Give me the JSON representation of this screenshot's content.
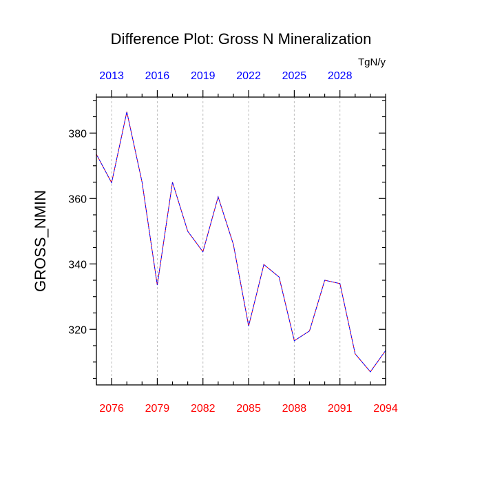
{
  "chart_data": {
    "type": "line",
    "title": "Difference Plot: Gross N Mineralization",
    "units": "TgN/y",
    "ylabel": "GROSS_NMIN",
    "xlabel": "",
    "xlim_bottom": [
      2075,
      2094
    ],
    "xlim_top": [
      2012,
      2031
    ],
    "ylim": [
      303,
      391
    ],
    "bottom_ticks": [
      2076,
      2079,
      2082,
      2085,
      2088,
      2091,
      2094
    ],
    "top_ticks": [
      2013,
      2016,
      2019,
      2022,
      2025,
      2028
    ],
    "y_ticks": [
      320,
      340,
      360,
      380
    ],
    "y_minor_step": 5,
    "colors": {
      "bottom_tick_labels": "#ff0000",
      "top_tick_labels": "#0000ff",
      "series_a": "#ff0000",
      "series_b": "#0000ff",
      "grid": "#bbbbbb"
    },
    "grid": "vertical dashed at bottom-axis major ticks",
    "series": [
      {
        "name": "difference",
        "x": [
          2075,
          2076,
          2077,
          2078,
          2079,
          2080,
          2081,
          2082,
          2083,
          2084,
          2085,
          2086,
          2087,
          2088,
          2089,
          2090,
          2091,
          2092,
          2093,
          2094
        ],
        "values": [
          373.5,
          364.8,
          386.5,
          365.0,
          333.5,
          365.0,
          350.0,
          343.7,
          360.5,
          346.0,
          321.0,
          339.8,
          336.0,
          316.5,
          319.5,
          335.0,
          334.0,
          312.5,
          307.0,
          313.5
        ]
      }
    ]
  }
}
